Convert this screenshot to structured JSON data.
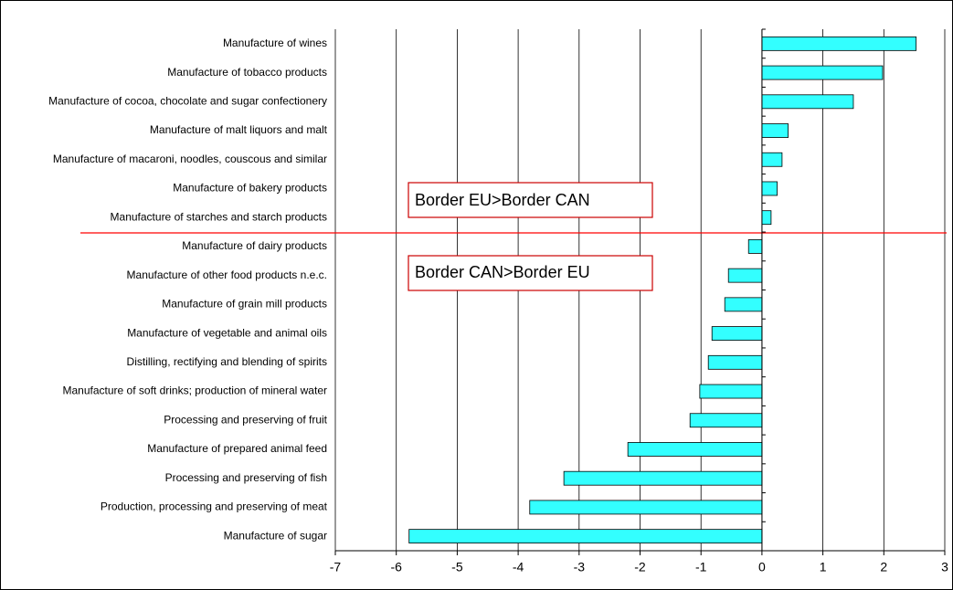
{
  "chart_data": {
    "type": "bar",
    "orientation": "horizontal",
    "categories": [
      "Manufacture of wines",
      "Manufacture of tobacco products",
      "Manufacture of cocoa, chocolate and sugar confectionery",
      "Manufacture of malt liquors and malt",
      "Manufacture of macaroni, noodles, couscous and similar",
      "Manufacture of bakery products",
      "Manufacture of starches and starch products",
      "Manufacture of dairy products",
      "Manufacture of other food products n.e.c.",
      "Manufacture of grain mill products",
      "Manufacture of vegetable and animal oils",
      "Distilling, rectifying and blending of spirits",
      "Manufacture of soft drinks; production of mineral water",
      "Processing and preserving of fruit",
      "Manufacture of prepared animal feed",
      "Processing and preserving of fish",
      "Production, processing and preserving of meat",
      "Manufacture of sugar"
    ],
    "values": [
      2.53,
      1.98,
      1.5,
      0.43,
      0.33,
      0.25,
      0.15,
      -0.22,
      -0.55,
      -0.61,
      -0.82,
      -0.88,
      -1.02,
      -1.18,
      -2.2,
      -3.25,
      -3.81,
      -5.79
    ],
    "color": "#33ffff",
    "xlim": [
      -7,
      3
    ],
    "xticks": [
      -7,
      -6,
      -5,
      -4,
      -3,
      -2,
      -1,
      0,
      1,
      2,
      3
    ],
    "grid": true,
    "annotations": [
      "Border EU>Border CAN",
      "Border CAN>Border EU"
    ]
  }
}
